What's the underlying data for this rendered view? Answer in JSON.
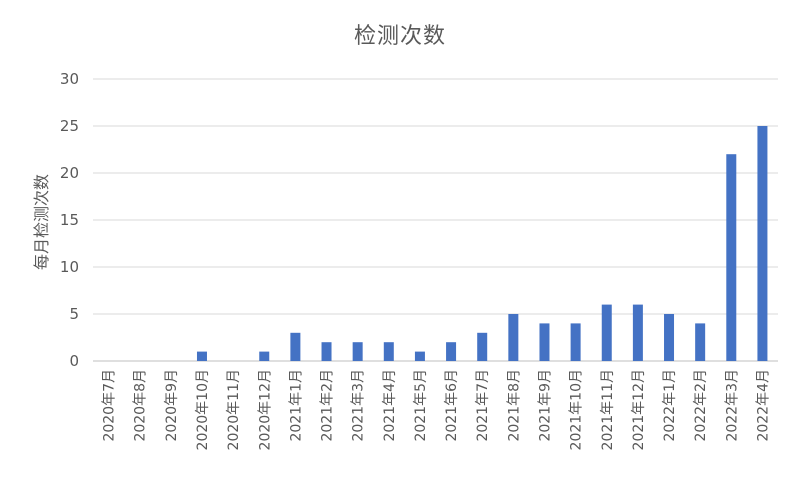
{
  "chart_data": {
    "type": "bar",
    "title": "检测次数",
    "xlabel": "",
    "ylabel": "每月检测次数",
    "categories": [
      "2020年7月",
      "2020年8月",
      "2020年9月",
      "2020年10月",
      "2020年11月",
      "2020年12月",
      "2021年1月",
      "2021年2月",
      "2021年3月",
      "2021年4月",
      "2021年5月",
      "2021年6月",
      "2021年7月",
      "2021年8月",
      "2021年9月",
      "2021年10月",
      "2021年11月",
      "2021年12月",
      "2022年1月",
      "2022年2月",
      "2022年3月",
      "2022年4月"
    ],
    "values": [
      0,
      0,
      0,
      1,
      0,
      1,
      3,
      2,
      2,
      2,
      1,
      2,
      3,
      5,
      4,
      4,
      6,
      6,
      5,
      4,
      22,
      25
    ],
    "ylim": [
      0,
      30
    ],
    "yticks": [
      "0",
      "5",
      "10",
      "15",
      "20",
      "25",
      "30"
    ],
    "grid": true,
    "legend": "none",
    "colors": {
      "bar": "#4472C4",
      "grid": "#D9D9D9",
      "axis": "#BFBFBF",
      "text": "#595959"
    }
  }
}
